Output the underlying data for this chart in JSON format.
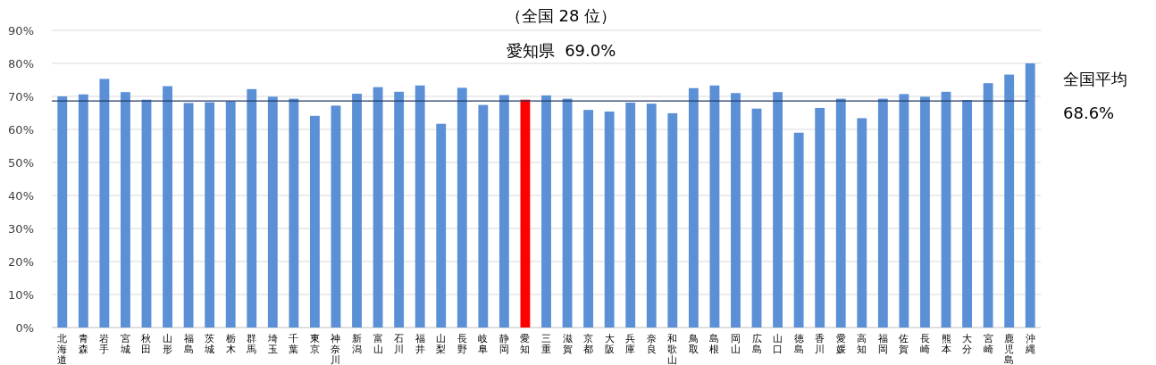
{
  "chart_data": {
    "type": "bar",
    "title": "（全国 28 位）",
    "subtitle": "愛知県  69.0%",
    "categories": [
      "北海道",
      "青森",
      "岩手",
      "宮城",
      "秋田",
      "山形",
      "福島",
      "茨城",
      "栃木",
      "群馬",
      "埼玉",
      "千葉",
      "東京",
      "神奈川",
      "新潟",
      "富山",
      "石川",
      "福井",
      "山梨",
      "長野",
      "岐阜",
      "静岡",
      "愛知",
      "三重",
      "滋賀",
      "京都",
      "大阪",
      "兵庫",
      "奈良",
      "和歌山",
      "鳥取",
      "島根",
      "岡山",
      "広島",
      "山口",
      "徳島",
      "香川",
      "愛媛",
      "高知",
      "福岡",
      "佐賀",
      "長崎",
      "熊本",
      "大分",
      "宮崎",
      "鹿児島",
      "沖縄"
    ],
    "values": [
      70.0,
      70.6,
      75.3,
      71.3,
      69.0,
      73.1,
      68.0,
      68.2,
      68.5,
      72.2,
      69.9,
      69.3,
      64.1,
      67.2,
      70.8,
      72.8,
      71.4,
      73.3,
      61.7,
      72.6,
      67.4,
      70.4,
      69.0,
      70.3,
      69.3,
      65.9,
      65.4,
      68.1,
      67.8,
      64.9,
      72.5,
      73.3,
      71.0,
      66.3,
      71.3,
      59.0,
      66.5,
      69.3,
      63.4,
      69.3,
      70.7,
      69.9,
      71.4,
      68.9,
      74.0,
      76.6,
      80.0
    ],
    "colors": [
      "#5b8fd6",
      "#5b8fd6",
      "#5b8fd6",
      "#5b8fd6",
      "#5b8fd6",
      "#5b8fd6",
      "#5b8fd6",
      "#5b8fd6",
      "#5b8fd6",
      "#5b8fd6",
      "#5b8fd6",
      "#5b8fd6",
      "#5b8fd6",
      "#5b8fd6",
      "#5b8fd6",
      "#5b8fd6",
      "#5b8fd6",
      "#5b8fd6",
      "#5b8fd6",
      "#5b8fd6",
      "#5b8fd6",
      "#5b8fd6",
      "#ff0000",
      "#5b8fd6",
      "#5b8fd6",
      "#5b8fd6",
      "#5b8fd6",
      "#5b8fd6",
      "#5b8fd6",
      "#5b8fd6",
      "#5b8fd6",
      "#5b8fd6",
      "#5b8fd6",
      "#5b8fd6",
      "#5b8fd6",
      "#5b8fd6",
      "#5b8fd6",
      "#5b8fd6",
      "#5b8fd6",
      "#5b8fd6",
      "#5b8fd6",
      "#5b8fd6",
      "#5b8fd6",
      "#5b8fd6",
      "#5b8fd6",
      "#5b8fd6",
      "#5b8fd6"
    ],
    "ylim": [
      0,
      90
    ],
    "yticks": [
      {
        "value": 0,
        "label": "0%"
      },
      {
        "value": 10,
        "label": "10%"
      },
      {
        "value": 20,
        "label": "20%"
      },
      {
        "value": 30,
        "label": "30%"
      },
      {
        "value": 40,
        "label": "40%"
      },
      {
        "value": 50,
        "label": "50%"
      },
      {
        "value": 60,
        "label": "60%"
      },
      {
        "value": 70,
        "label": "70%"
      },
      {
        "value": 80,
        "label": "80%"
      },
      {
        "value": 90,
        "label": "90%"
      }
    ],
    "grid": "y",
    "ref_lines": [
      {
        "axis": "y",
        "value": 68.6,
        "label": "全国平均 68.6%",
        "color": "#1f3864"
      }
    ]
  }
}
